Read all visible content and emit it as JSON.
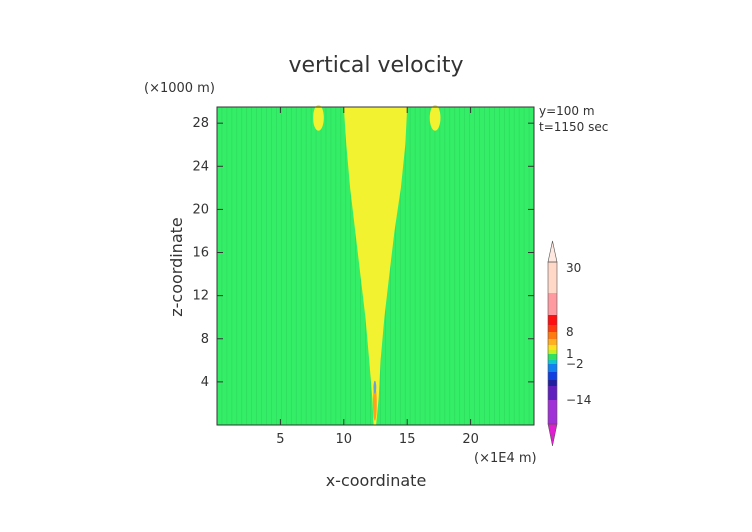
{
  "chart_data": {
    "type": "heatmap",
    "title": "vertical velocity",
    "xlabel": "x-coordinate",
    "ylabel": "z-coordinate",
    "x_unit": "(×1E4 m)",
    "y_unit": "(×1000 m)",
    "xlim": [
      0,
      25
    ],
    "ylim": [
      0,
      29.5
    ],
    "x_ticks": [
      "5",
      "10",
      "15",
      "20"
    ],
    "y_ticks": [
      "4",
      "8",
      "12",
      "16",
      "20",
      "24",
      "28"
    ],
    "annotations": [
      "y=100 m",
      "t=1150 sec"
    ],
    "background_level_color": "#33ee66",
    "colorbar": {
      "tick_labels": [
        "30",
        "8",
        "1",
        "−2",
        "−14"
      ],
      "tick_values": [
        30,
        8,
        1,
        -2,
        -14
      ]
    },
    "features": [
      {
        "label": "plume",
        "color": "#f2f230",
        "outline": [
          [
            10.0,
            29.5
          ],
          [
            15.0,
            29.5
          ],
          [
            14.85,
            26
          ],
          [
            14.5,
            22
          ],
          [
            14.0,
            18
          ],
          [
            13.6,
            14
          ],
          [
            13.2,
            10
          ],
          [
            12.9,
            6
          ],
          [
            12.75,
            2.5
          ],
          [
            12.55,
            0
          ],
          [
            12.35,
            0
          ],
          [
            12.25,
            2.5
          ],
          [
            12.0,
            6
          ],
          [
            11.7,
            10
          ],
          [
            11.3,
            14
          ],
          [
            10.9,
            18
          ],
          [
            10.5,
            22
          ],
          [
            10.2,
            26
          ],
          [
            10.0,
            29.5
          ]
        ]
      },
      {
        "label": "left-bubble",
        "color": "#f2f230",
        "center": [
          8.0,
          28.5
        ],
        "width": 0.85,
        "height": 2.4
      },
      {
        "label": "right-bubble",
        "color": "#f2f230",
        "center": [
          17.2,
          28.5
        ],
        "width": 0.85,
        "height": 2.4
      },
      {
        "label": "core-orange",
        "color": "#ffa020",
        "center": [
          12.45,
          2.0
        ],
        "width": 0.3,
        "height": 3.2
      },
      {
        "label": "core-blue",
        "color": "#6aa0d8",
        "center": [
          12.45,
          3.5
        ],
        "width": 0.22,
        "height": 1.2
      }
    ]
  }
}
